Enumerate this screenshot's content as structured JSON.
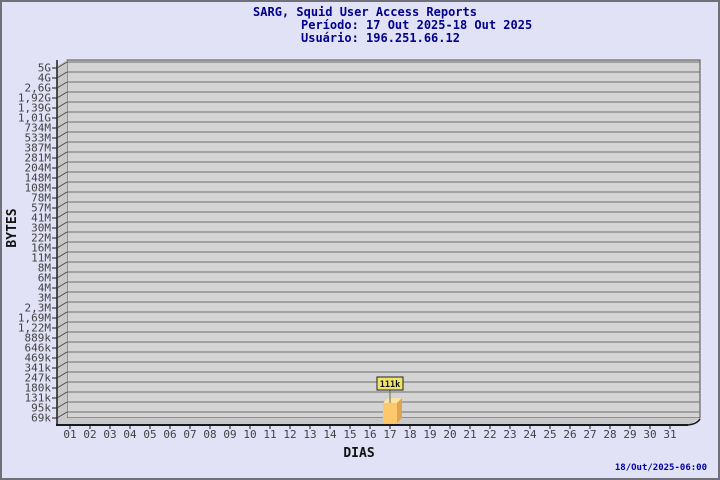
{
  "window": {
    "background": "#E2E2F7",
    "border_color": "#70707A"
  },
  "header": {
    "title": "SARG, Squid User Access Reports",
    "period": "Período: 17 Out 2025-18 Out 2025",
    "user": "Usuário: 196.251.66.12",
    "color": "#00008C"
  },
  "footer": {
    "timestamp": "18/Out/2025-06:00",
    "color": "#0000A0"
  },
  "chart_data": {
    "type": "bar",
    "style_3d": true,
    "grid": true,
    "title": "SARG, Squid User Access Reports",
    "subtitle": "Período: 17 Out 2025-18 Out 2025",
    "subtitle2": "Usuário: 196.251.66.12",
    "xlabel": "DIAS",
    "ylabel": "BYTES",
    "y_scale": "log",
    "y_tick_labels": [
      "5G",
      "4G",
      "2,6G",
      "1,92G",
      "1,39G",
      "1,01G",
      "734M",
      "533M",
      "387M",
      "281M",
      "204M",
      "148M",
      "108M",
      "78M",
      "57M",
      "41M",
      "30M",
      "22M",
      "16M",
      "11M",
      "8M",
      "6M",
      "4M",
      "3M",
      "2,3M",
      "1,69M",
      "1,22M",
      "889k",
      "646k",
      "469k",
      "341k",
      "247k",
      "180k",
      "131k",
      "95k",
      "69k"
    ],
    "x_tick_labels": [
      "01",
      "02",
      "03",
      "04",
      "05",
      "06",
      "07",
      "08",
      "09",
      "10",
      "11",
      "12",
      "13",
      "14",
      "15",
      "16",
      "17",
      "18",
      "19",
      "20",
      "21",
      "22",
      "23",
      "24",
      "25",
      "26",
      "27",
      "28",
      "29",
      "30",
      "31"
    ],
    "bars": [
      {
        "day": "17",
        "value": "111k",
        "value_bytes": 111000
      }
    ],
    "colors": {
      "plot_face": "#D4D4D4",
      "grid_line": "#6E6E6E",
      "wall": "#C8C8C8",
      "floor": "#C8C8C8",
      "face_edge": "#4D4D4D",
      "axis": "#1A1A1A",
      "tick_text": "#424242",
      "bar_front": "#FDC76C",
      "bar_side": "#DFA352",
      "bar_top": "#FEE3A6",
      "bar_label_bg": "#EFE36E",
      "bar_label_border": "#222222",
      "bar_label_text": "#111111",
      "label_connector": "#6B6B45"
    }
  }
}
